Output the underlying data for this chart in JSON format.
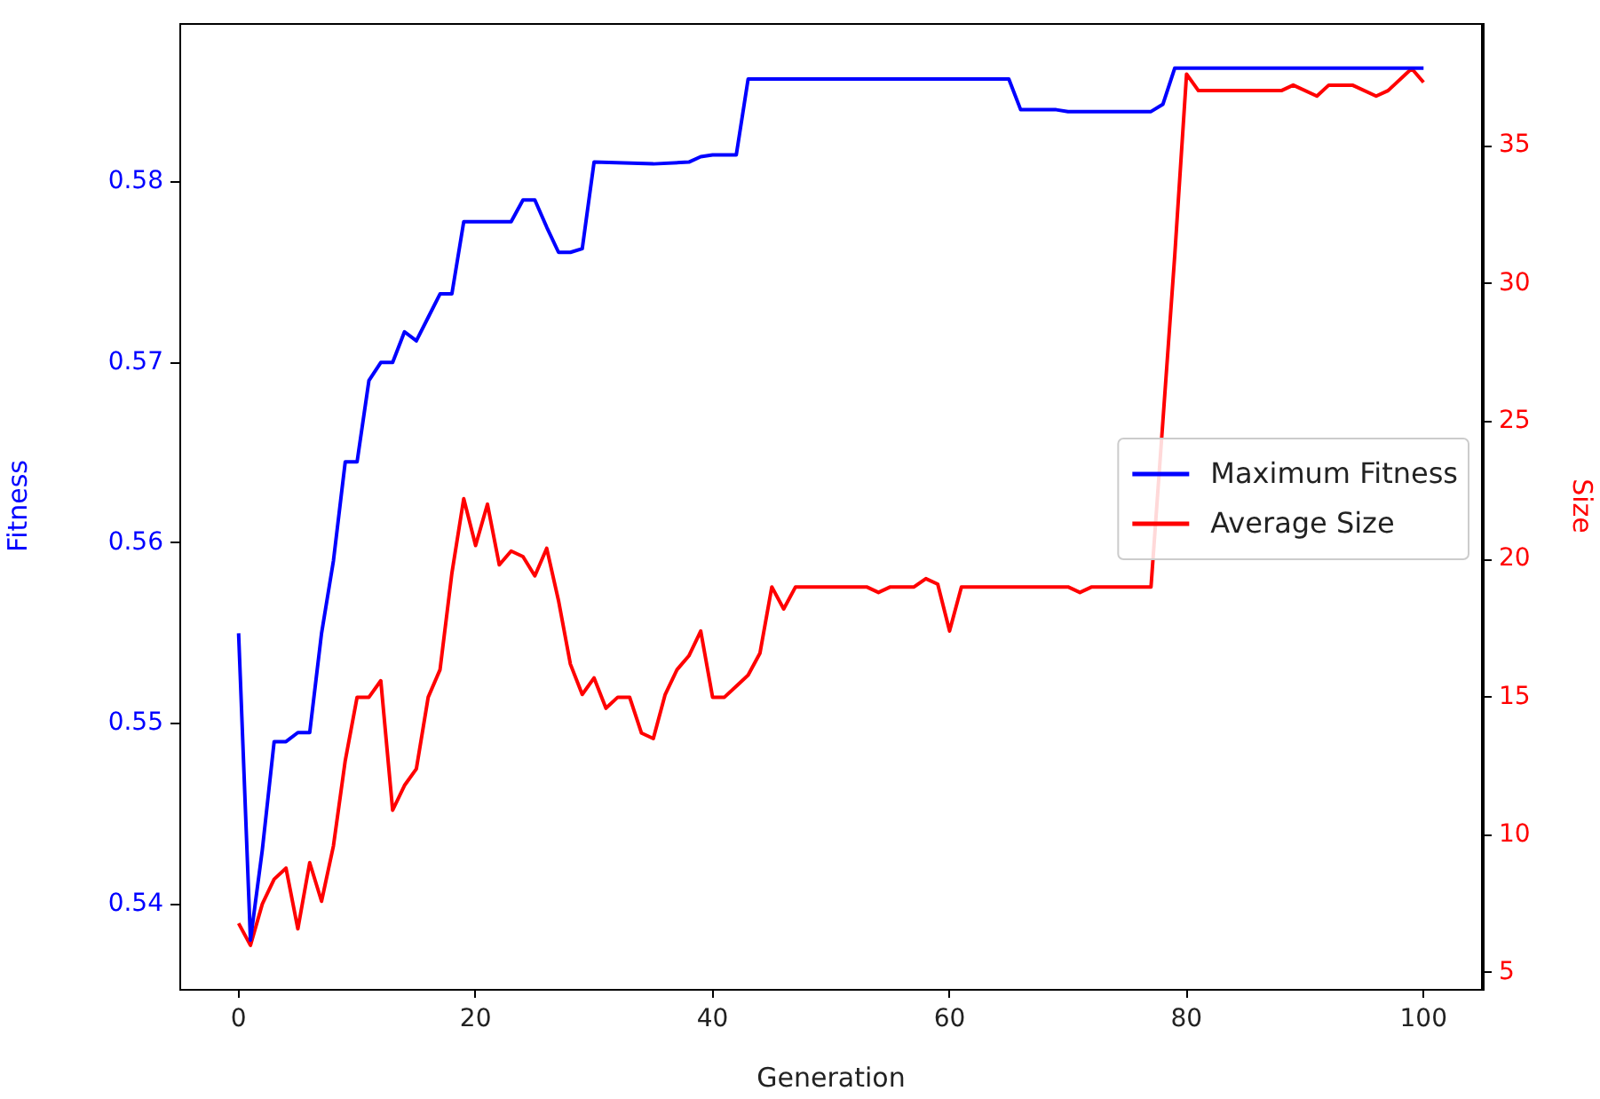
{
  "chart_data": {
    "type": "line",
    "xlabel": "Generation",
    "ylabel": "Fitness",
    "y2label": "Size",
    "xlim": [
      -5,
      105
    ],
    "xticks": [
      0,
      20,
      40,
      60,
      80,
      100
    ],
    "ylim": [
      0.5353,
      0.5888
    ],
    "yticks": [
      0.54,
      0.55,
      0.56,
      0.57,
      0.58
    ],
    "y2lim": [
      4.42,
      39.45
    ],
    "y2ticks": [
      5,
      10,
      15,
      20,
      25,
      30,
      35
    ],
    "grid": false,
    "legend": "right",
    "marker": "none",
    "line_style": "solid",
    "series": [
      {
        "name": "Maximum Fitness",
        "color": "#0000ff",
        "axis": "y",
        "x": [
          0,
          1,
          2,
          3,
          4,
          5,
          6,
          7,
          8,
          9,
          10,
          11,
          12,
          13,
          14,
          15,
          16,
          17,
          18,
          19,
          23,
          24,
          25,
          26,
          27,
          28,
          29,
          30,
          35,
          38,
          39,
          40,
          42,
          43,
          65,
          66,
          69,
          70,
          77,
          78,
          79,
          100
        ],
        "values": [
          0.555,
          0.538,
          0.543,
          0.549,
          0.549,
          0.5495,
          0.5495,
          0.555,
          0.559,
          0.5645,
          0.5645,
          0.569,
          0.57,
          0.57,
          0.5717,
          0.5712,
          0.5725,
          0.5738,
          0.5738,
          0.5778,
          0.5778,
          0.579,
          0.579,
          0.5775,
          0.5761,
          0.5761,
          0.5763,
          0.5811,
          0.581,
          0.5811,
          0.5814,
          0.5815,
          0.5815,
          0.5857,
          0.5857,
          0.584,
          0.584,
          0.5839,
          0.5839,
          0.5843,
          0.5863,
          0.5863
        ]
      },
      {
        "name": "Average Size",
        "color": "#ff0000",
        "axis": "y2",
        "x": [
          0,
          1,
          2,
          3,
          4,
          5,
          6,
          7,
          8,
          9,
          10,
          11,
          12,
          13,
          14,
          15,
          16,
          17,
          18,
          19,
          20,
          21,
          22,
          23,
          24,
          25,
          26,
          27,
          28,
          29,
          30,
          31,
          32,
          33,
          34,
          35,
          36,
          37,
          38,
          39,
          40,
          41,
          42,
          43,
          44,
          45,
          46,
          47,
          53,
          54,
          55,
          57,
          58,
          59,
          60,
          61,
          70,
          71,
          72,
          77,
          78,
          79,
          80,
          81,
          88,
          89,
          91,
          92,
          94,
          96,
          97,
          99,
          100
        ],
        "values": [
          6.8,
          6.0,
          7.5,
          8.4,
          8.8,
          6.6,
          9.0,
          7.6,
          9.6,
          12.7,
          15.0,
          15.0,
          15.6,
          10.9,
          11.8,
          12.4,
          15.0,
          16.0,
          19.5,
          22.2,
          20.5,
          22.0,
          19.8,
          20.3,
          20.1,
          19.4,
          20.4,
          18.5,
          16.2,
          15.1,
          15.7,
          14.6,
          15.0,
          15.0,
          13.7,
          13.5,
          15.1,
          16.0,
          16.5,
          17.4,
          15.0,
          15.0,
          15.4,
          15.8,
          16.6,
          19.0,
          18.2,
          19.0,
          19.0,
          18.8,
          19.0,
          19.0,
          19.3,
          19.1,
          17.4,
          19.0,
          19.0,
          18.8,
          19.0,
          19.0,
          25.0,
          31.0,
          37.6,
          37.0,
          37.0,
          37.2,
          36.8,
          37.2,
          37.2,
          36.8,
          37.0,
          37.8,
          37.3
        ]
      }
    ]
  }
}
